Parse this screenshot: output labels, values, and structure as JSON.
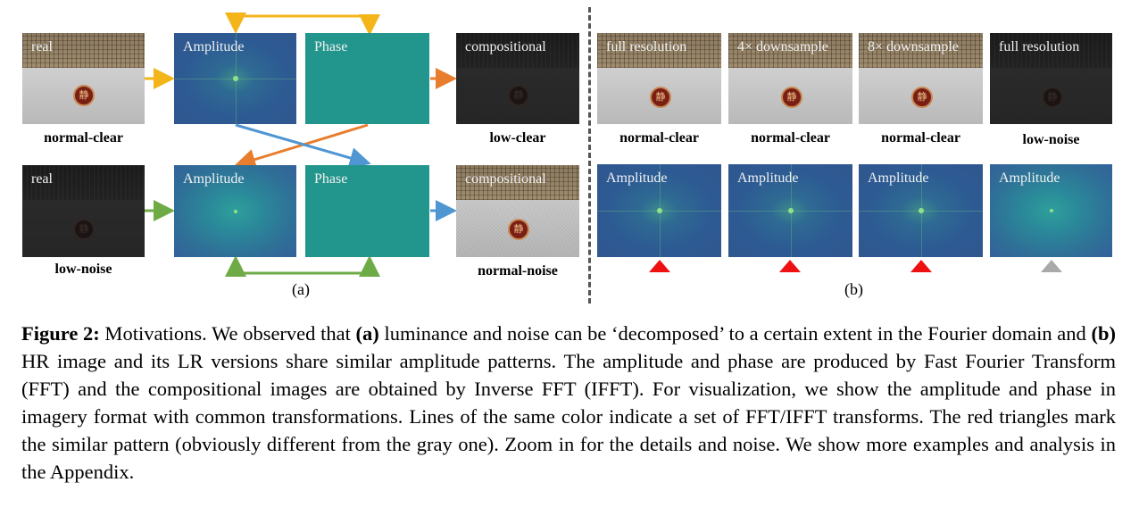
{
  "panel_a": {
    "label": "(a)",
    "top_row": {
      "photo_label": "real",
      "amplitude_label": "Amplitude",
      "phase_label": "Phase",
      "result_label": "compositional",
      "photo_caption": "normal-clear",
      "result_caption": "low-clear"
    },
    "bottom_row": {
      "photo_label": "real",
      "amplitude_label": "Amplitude",
      "phase_label": "Phase",
      "result_label": "compositional",
      "photo_caption": "low-noise",
      "result_caption": "normal-noise"
    },
    "arrow_colors": {
      "yellow": "#f3b51a",
      "orange": "#e97d2e",
      "blue": "#4f96d2",
      "green": "#6eab46"
    }
  },
  "panel_b": {
    "label": "(b)",
    "columns": [
      {
        "photo_label": "full resolution",
        "caption": "normal-clear",
        "amp_label": "Amplitude",
        "marker": "red"
      },
      {
        "photo_label": "4× downsample",
        "caption": "normal-clear",
        "amp_label": "Amplitude",
        "marker": "red"
      },
      {
        "photo_label": "8× downsample",
        "caption": "normal-clear",
        "amp_label": "Amplitude",
        "marker": "red"
      },
      {
        "photo_label": "full resolution",
        "caption": "low-noise",
        "amp_label": "Amplitude",
        "marker": "gray"
      }
    ]
  },
  "seal_char": "静",
  "caption": {
    "fig_label": "Figure 2:",
    "t1": " Motivations. We observed that ",
    "a_label": "(a)",
    "t2": " luminance and noise can be ‘decomposed’ to a certain extent in the Fourier domain and ",
    "b_label": "(b)",
    "t3": " HR image and its LR versions share similar amplitude patterns. The amplitude and phase are produced by Fast Fourier Transform (FFT) and the compositional images are obtained by Inverse FFT (IFFT). For visualization, we show the amplitude and phase in imagery format with common transformations. Lines of the same color indicate a set of FFT/IFFT transforms. The red triangles mark the similar pattern (obviously different from the gray one). Zoom in for the details and noise. We show more examples and analysis in the Appendix."
  }
}
